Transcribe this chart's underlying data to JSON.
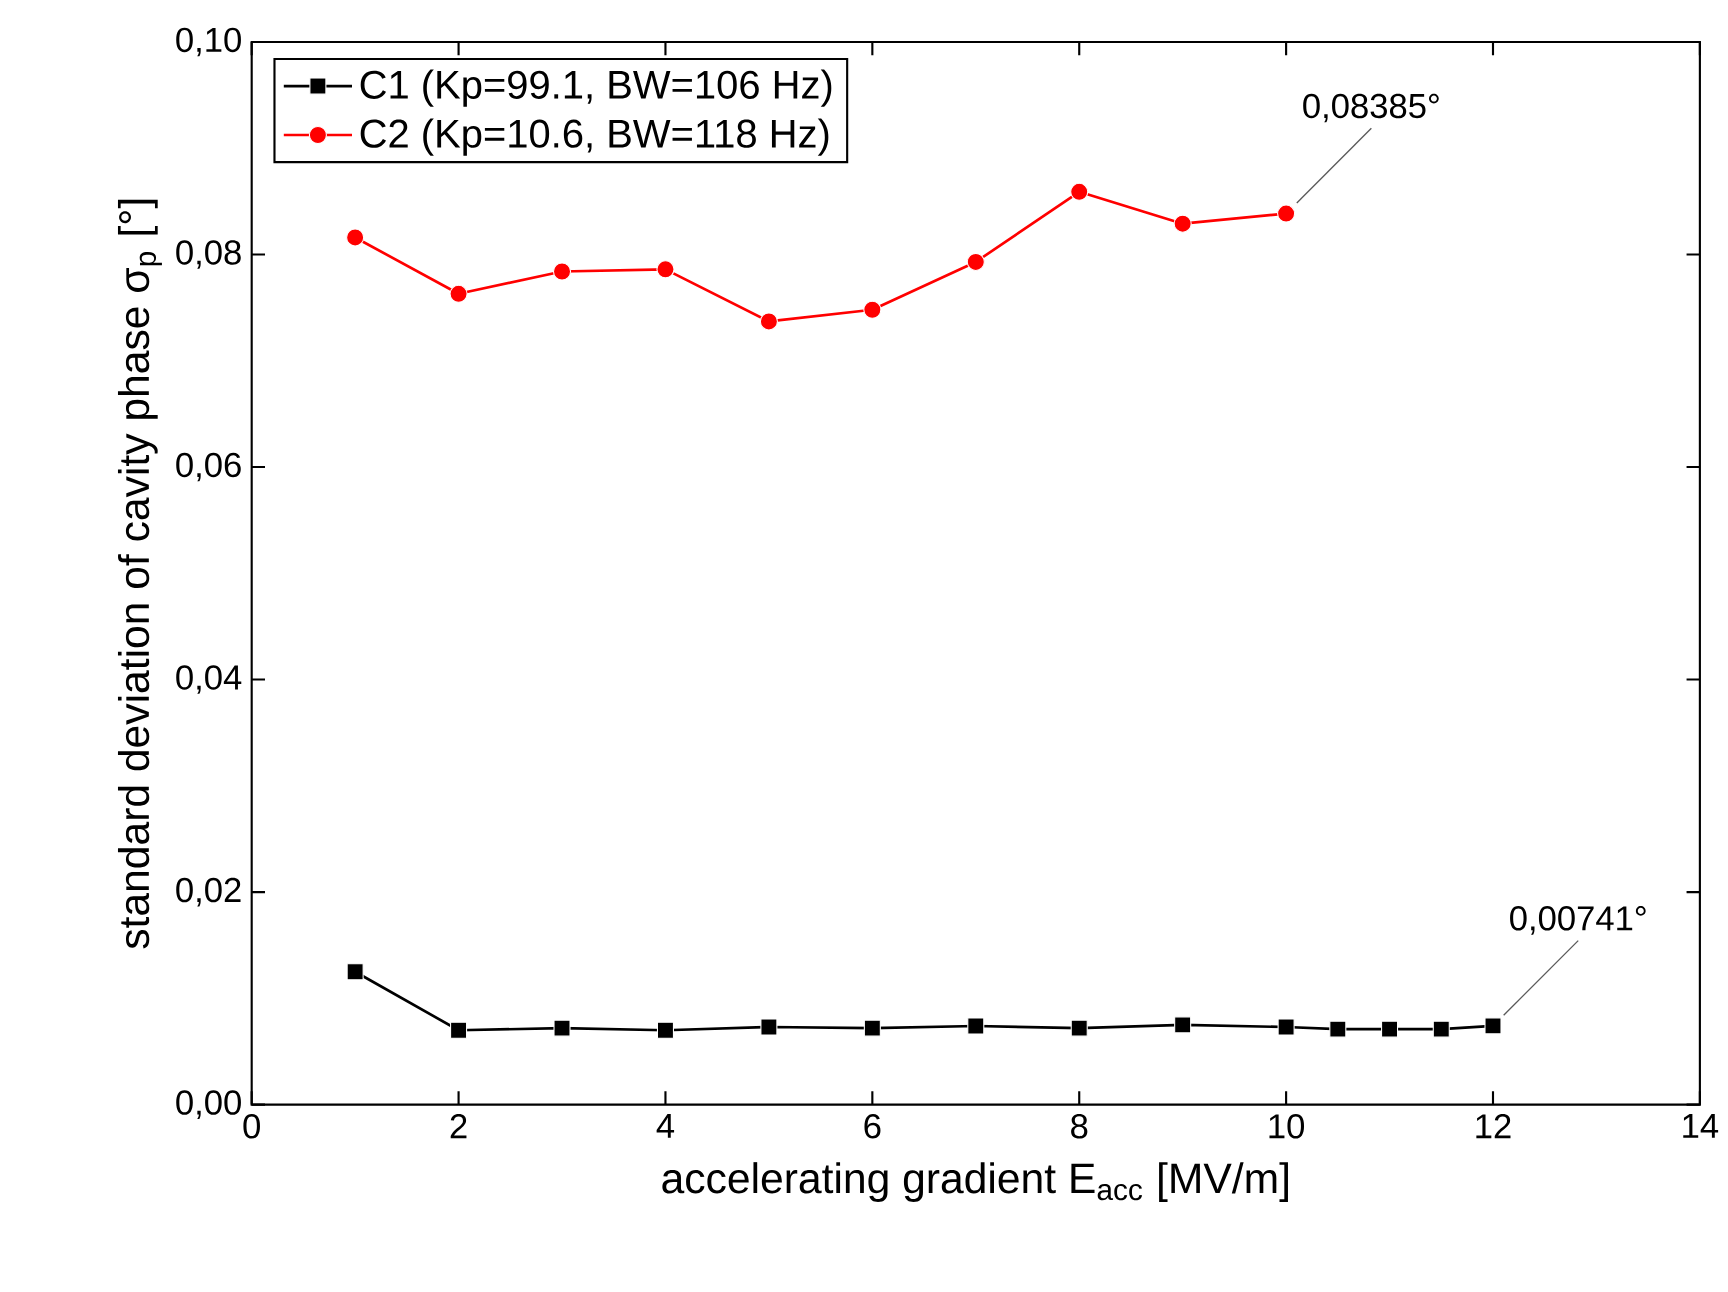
{
  "chart_data": {
    "type": "line",
    "xlabel": "accelerating gradient E$_{acc}$ [MV/m]",
    "ylabel": "standard deviation of cavity phase σ$_{p}$ [°]",
    "xlim": [
      0,
      14
    ],
    "ylim": [
      0,
      0.1
    ],
    "xticks": [
      0,
      2,
      4,
      6,
      8,
      10,
      12,
      14
    ],
    "yticks": [
      {
        "value": 0,
        "label": "0,00"
      },
      {
        "value": 0.02,
        "label": "0,02"
      },
      {
        "value": 0.04,
        "label": "0,04"
      },
      {
        "value": 0.06,
        "label": "0,06"
      },
      {
        "value": 0.08,
        "label": "0,08"
      },
      {
        "value": 0.1,
        "label": "0,10"
      }
    ],
    "legend": "top left",
    "grid": false,
    "series": [
      {
        "name": "C1 (Kp=99.1, BW=106 Hz)",
        "color": "#000000",
        "marker": "square",
        "x": [
          1,
          2,
          3,
          4,
          5,
          6,
          7,
          8,
          9,
          10,
          10.5,
          11,
          11.5,
          12
        ],
        "values": [
          0.0125,
          0.007,
          0.0072,
          0.007,
          0.0073,
          0.0072,
          0.0074,
          0.0072,
          0.0075,
          0.0073,
          0.0071,
          0.0071,
          0.0071,
          0.00741
        ]
      },
      {
        "name": "C2 (Kp=10.6, BW=118 Hz)",
        "color": "#ff0000",
        "marker": "circle",
        "x": [
          1,
          2,
          3,
          4,
          5,
          6,
          7,
          8,
          9,
          10
        ],
        "values": [
          0.0816,
          0.0763,
          0.0784,
          0.0786,
          0.0737,
          0.0748,
          0.0793,
          0.0859,
          0.0829,
          0.08385
        ]
      }
    ],
    "annotations": [
      {
        "text": "0,08385°",
        "x": 10,
        "y": 0.08385
      },
      {
        "text": "0,00741°",
        "x": 12,
        "y": 0.00741
      }
    ]
  }
}
